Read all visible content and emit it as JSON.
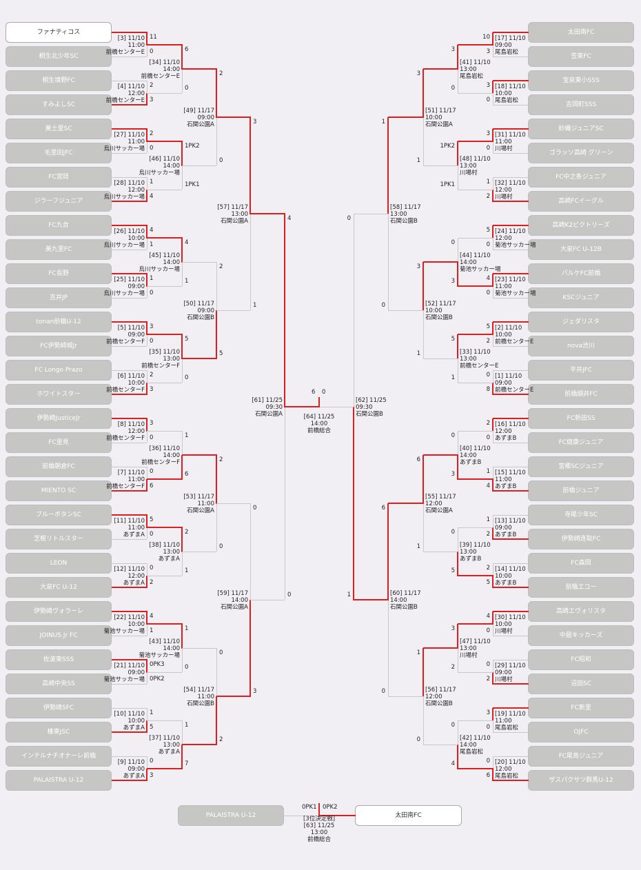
{
  "colors": {
    "win_line": "#dc1e1e",
    "lose_line": "#c8c8c8",
    "team_box": "#c6c6c4",
    "page_bg": "#f1eff3"
  },
  "left_teams": [
    "ファナティコス",
    "桐生北少年SC",
    "桐生境野FC",
    "すみよしSC",
    "美土里SC",
    "毛里田JFC",
    "FC宮岡",
    "ジラーフジュニア",
    "FC九合",
    "美九里FC",
    "FC長野",
    "吉井JP",
    "tonan前橋U-12",
    "FC伊勢崎城Jr",
    "FC Longo Prazo",
    "ホワイトスター",
    "伊勢崎JusticeJr",
    "FC里見",
    "前橋朝倉FC",
    "MIENTO SC",
    "ブルーボタンSC",
    "芝根リトルスター",
    "LEON",
    "大泉FC U-12",
    "伊勢崎ヴォラーレ",
    "JOINUS Jr FC",
    "佐波東SSS",
    "高崎中央SS",
    "伊勢崎SFC",
    "榛東JSC",
    "インテルナチオナーレ前橋",
    "PALAISTRA U-12"
  ],
  "right_teams": [
    "太田南FC",
    "笠東FC",
    "宝泉東小SSS",
    "吉岡町SSS",
    "紗織ジュニアSC",
    "ゴラッソ高崎 グリーン",
    "FC中之条ジュニア",
    "高崎FCイーグル",
    "高崎K2ビクトリーズ",
    "大泉FC U-12B",
    "パルケFC前橋",
    "KSCジュニア",
    "ジェダリスタ",
    "nova渋川",
    "平井JFC",
    "前橋細井FC",
    "FC新田SS",
    "FC健康ジュニア",
    "宮郷SCジュニア",
    "前橋ジュニア",
    "寺尾少年SC",
    "伊勢崎连取FC",
    "FC森岡",
    "前橋エコー",
    "高崎エヴォリスタ",
    "中居キッカーズ",
    "FC昭和",
    "沼田SC",
    "FC新里",
    "OJFC",
    "FC尾島ジュニア",
    "ザスパクサツ群馬U-12"
  ],
  "left_r1": [
    {
      "no": "[3]",
      "date": "11/10",
      "time": "11:00",
      "venue": "前橋センターE",
      "top": "11",
      "bot": "0",
      "win": 0
    },
    {
      "no": "[4]",
      "date": "11/10",
      "time": "12:00",
      "venue": "前橋センターE",
      "top": "2",
      "bot": "3",
      "win": 1
    },
    {
      "no": "[27]",
      "date": "11/10",
      "time": "11:00",
      "venue": "烏川サッカー場",
      "top": "2",
      "bot": "0",
      "win": 0
    },
    {
      "no": "[28]",
      "date": "11/10",
      "time": "12:00",
      "venue": "烏川サッカー場",
      "top": "1",
      "bot": "4",
      "win": 1
    },
    {
      "no": "[26]",
      "date": "11/10",
      "time": "10:00",
      "venue": "烏川サッカー場",
      "top": "4",
      "bot": "1",
      "win": 0
    },
    {
      "no": "[25]",
      "date": "11/10",
      "time": "09:00",
      "venue": "烏川サッカー場",
      "top": "1",
      "bot": "0",
      "win": 0
    },
    {
      "no": "[5]",
      "date": "11/10",
      "time": "09:00",
      "venue": "前橋センターF",
      "top": "3",
      "bot": "0",
      "win": 0
    },
    {
      "no": "[6]",
      "date": "11/10",
      "time": "10:00",
      "venue": "前橋センターF",
      "top": "2",
      "bot": "3",
      "win": 1
    },
    {
      "no": "[8]",
      "date": "11/10",
      "time": "12:00",
      "venue": "前橋センターF",
      "top": "3",
      "bot": "0",
      "win": 0
    },
    {
      "no": "[7]",
      "date": "11/10",
      "time": "11:00",
      "venue": "前橋センターF",
      "top": "0",
      "bot": "6",
      "win": 1
    },
    {
      "no": "[11]",
      "date": "11/10",
      "time": "11:00",
      "venue": "あずまA",
      "top": "5",
      "bot": "0",
      "win": 0
    },
    {
      "no": "[12]",
      "date": "11/10",
      "time": "12:00",
      "venue": "あずまA",
      "top": "0",
      "bot": "2",
      "win": 1
    },
    {
      "no": "[22]",
      "date": "11/10",
      "time": "10:00",
      "venue": "菊池サッカー場",
      "top": "4",
      "bot": "1",
      "win": 0
    },
    {
      "no": "[21]",
      "date": "11/10",
      "time": "09:00",
      "venue": "菊池サッカー場",
      "top": "0PK3",
      "bot": "0PK2",
      "win": 0
    },
    {
      "no": "[10]",
      "date": "11/10",
      "time": "10:00",
      "venue": "あずまA",
      "top": "1",
      "bot": "5",
      "win": 1
    },
    {
      "no": "[9]",
      "date": "11/10",
      "time": "09:00",
      "venue": "あずまA",
      "top": "0",
      "bot": "3",
      "win": 1
    }
  ],
  "left_r2": [
    {
      "no": "[34]",
      "date": "11/10",
      "time": "14:00",
      "venue": "前橋センターE",
      "top": "6",
      "bot": "0",
      "win": 0
    },
    {
      "no": "[46]",
      "date": "11/10",
      "time": "14:00",
      "venue": "烏川サッカー場",
      "top": "1PK2",
      "bot": "1PK1",
      "win": 0
    },
    {
      "no": "[45]",
      "date": "11/10",
      "time": "14:00",
      "venue": "烏川サッカー場",
      "top": "4",
      "bot": "1",
      "win": 0
    },
    {
      "no": "[35]",
      "date": "11/10",
      "time": "13:00",
      "venue": "前橋センターF",
      "top": "5",
      "bot": "0",
      "win": 0
    },
    {
      "no": "[36]",
      "date": "11/10",
      "time": "14:00",
      "venue": "前橋センターF",
      "top": "1",
      "bot": "6",
      "win": 1
    },
    {
      "no": "[38]",
      "date": "11/10",
      "time": "13:00",
      "venue": "あずまA",
      "top": "2",
      "bot": "1",
      "win": 0
    },
    {
      "no": "[43]",
      "date": "11/10",
      "time": "14:00",
      "venue": "菊池サッカー場",
      "top": "1",
      "bot": "0",
      "win": 0
    },
    {
      "no": "[37]",
      "date": "11/10",
      "time": "13:00",
      "venue": "あずまA",
      "top": "1",
      "bot": "7",
      "win": 1
    }
  ],
  "left_r3": [
    {
      "no": "[49]",
      "date": "11/17",
      "time": "09:00",
      "venue": "石関公園A",
      "top": "2",
      "bot": "0",
      "win": 0
    },
    {
      "no": "[50]",
      "date": "11/17",
      "time": "09:00",
      "venue": "石関公園B",
      "top": "2",
      "bot": "5",
      "win": 1
    },
    {
      "no": "[53]",
      "date": "11/17",
      "time": "11:00",
      "venue": "石関公園A",
      "top": "2",
      "bot": "0",
      "win": 0
    },
    {
      "no": "[54]",
      "date": "11/17",
      "time": "11:00",
      "venue": "石関公園B",
      "top": "0",
      "bot": "2",
      "win": 1
    }
  ],
  "left_r4": [
    {
      "no": "[57]",
      "date": "11/17",
      "time": "13:00",
      "venue": "石関公園A",
      "top": "3",
      "bot": "1",
      "win": 0
    },
    {
      "no": "[59]",
      "date": "11/17",
      "time": "14:00",
      "venue": "石関公園A",
      "top": "0",
      "bot": "3",
      "win": 1
    }
  ],
  "left_sf": {
    "no": "[61]",
    "date": "11/25",
    "time": "09:30",
    "venue": "石関公園A",
    "top": "4",
    "bot": "0",
    "win": 0
  },
  "right_r1": [
    {
      "no": "[17]",
      "date": "11/10",
      "time": "09:00",
      "venue": "尾島岩松",
      "top": "10",
      "bot": "3",
      "win": 0
    },
    {
      "no": "[18]",
      "date": "11/10",
      "time": "10:00",
      "venue": "尾島岩松",
      "top": "3",
      "bot": "0",
      "win": 0
    },
    {
      "no": "[31]",
      "date": "11/10",
      "time": "11:00",
      "venue": "川場村",
      "top": "3",
      "bot": "0",
      "win": 0
    },
    {
      "no": "[32]",
      "date": "11/10",
      "time": "12:00",
      "venue": "川場村",
      "top": "1",
      "bot": "2",
      "win": 1
    },
    {
      "no": "[24]",
      "date": "11/10",
      "time": "12:00",
      "venue": "菊池サッカー場",
      "top": "5",
      "bot": "0",
      "win": 0
    },
    {
      "no": "[23]",
      "date": "11/10",
      "time": "11:00",
      "venue": "菊池サッカー場",
      "top": "4",
      "bot": "0",
      "win": 0
    },
    {
      "no": "[2]",
      "date": "11/10",
      "time": "10:00",
      "venue": "前橋センターE",
      "top": "5",
      "bot": "2",
      "win": 0
    },
    {
      "no": "[1]",
      "date": "11/10",
      "time": "09:00",
      "venue": "前橋センターE",
      "top": "0",
      "bot": "8",
      "win": 1
    },
    {
      "no": "[16]",
      "date": "11/10",
      "time": "12:00",
      "venue": "あずまB",
      "top": "2",
      "bot": "0",
      "win": 0
    },
    {
      "no": "[15]",
      "date": "11/10",
      "time": "11:00",
      "venue": "あずまB",
      "top": "1",
      "bot": "4",
      "win": 1
    },
    {
      "no": "[13]",
      "date": "11/10",
      "time": "09:00",
      "venue": "あずまB",
      "top": "1",
      "bot": "2",
      "win": 1
    },
    {
      "no": "[14]",
      "date": "11/10",
      "time": "10:00",
      "venue": "あずまB",
      "top": "2",
      "bot": "5",
      "win": 1
    },
    {
      "no": "[30]",
      "date": "11/10",
      "time": "10:00",
      "venue": "川場村",
      "top": "4",
      "bot": "0",
      "win": 0
    },
    {
      "no": "[29]",
      "date": "11/10",
      "time": "09:00",
      "venue": "川場村",
      "top": "0",
      "bot": "2",
      "win": 1
    },
    {
      "no": "[19]",
      "date": "11/10",
      "time": "11:00",
      "venue": "尾島岩松",
      "top": "3",
      "bot": "0",
      "win": 0
    },
    {
      "no": "[20]",
      "date": "11/10",
      "time": "12:00",
      "venue": "尾島岩松",
      "top": "0",
      "bot": "6",
      "win": 1
    }
  ],
  "right_r2": [
    {
      "no": "[41]",
      "date": "11/10",
      "time": "13:00",
      "venue": "尾島岩松",
      "top": "3",
      "bot": "0",
      "win": 0
    },
    {
      "no": "[48]",
      "date": "11/10",
      "time": "13:00",
      "venue": "川場村",
      "top": "1PK2",
      "bot": "1PK1",
      "win": 0
    },
    {
      "no": "[44]",
      "date": "11/10",
      "time": "14:00",
      "venue": "菊池サッカー場",
      "top": "0",
      "bot": "3",
      "win": 1
    },
    {
      "no": "[33]",
      "date": "11/10",
      "time": "13:00",
      "venue": "前橋センターE",
      "top": "5",
      "bot": "1",
      "win": 0
    },
    {
      "no": "[40]",
      "date": "11/10",
      "time": "14:00",
      "venue": "あずまB",
      "top": "0",
      "bot": "3",
      "win": 1
    },
    {
      "no": "[39]",
      "date": "11/10",
      "time": "13:00",
      "venue": "あずまB",
      "top": "0",
      "bot": "5",
      "win": 1
    },
    {
      "no": "[47]",
      "date": "11/10",
      "time": "13:00",
      "venue": "川場村",
      "top": "3",
      "bot": "2",
      "win": 0
    },
    {
      "no": "[42]",
      "date": "11/10",
      "time": "14:00",
      "venue": "尾島岩松",
      "top": "0",
      "bot": "4",
      "win": 1
    }
  ],
  "right_r3": [
    {
      "no": "[51]",
      "date": "11/17",
      "time": "10:00",
      "venue": "石関公園A",
      "top": "3",
      "bot": "1",
      "win": 0
    },
    {
      "no": "[52]",
      "date": "11/17",
      "time": "10:00",
      "venue": "石関公園B",
      "top": "3",
      "bot": "1",
      "win": 0
    },
    {
      "no": "[55]",
      "date": "11/17",
      "time": "12:00",
      "venue": "石関公園A",
      "top": "6",
      "bot": "1",
      "win": 0
    },
    {
      "no": "[56]",
      "date": "11/17",
      "time": "12:00",
      "venue": "石関公園B",
      "top": "1",
      "bot": "0",
      "win": 0
    }
  ],
  "right_r4": [
    {
      "no": "[58]",
      "date": "11/17",
      "time": "13:00",
      "venue": "石関公園B",
      "top": "1",
      "bot": "0",
      "win": 0
    },
    {
      "no": "[60]",
      "date": "11/17",
      "time": "14:00",
      "venue": "石関公園B",
      "top": "6",
      "bot": "0",
      "win": 0
    }
  ],
  "right_sf": {
    "no": "[62]",
    "date": "11/25",
    "time": "09:30",
    "venue": "石関公園B",
    "top": "0",
    "bot": "1",
    "win": 1
  },
  "final": {
    "no": "[64]",
    "date": "11/25",
    "time": "14:00",
    "venue": "前橋総合",
    "left": "6",
    "right": "0"
  },
  "third_place": {
    "label": "[3位決定戦]",
    "no": "[63]",
    "date": "11/25",
    "time": "13:00",
    "venue": "前橋総合",
    "left_team": "PALAISTRA U-12",
    "right_team": "太田南FC",
    "left_score": "0PK1",
    "right_score": "0PK2"
  }
}
